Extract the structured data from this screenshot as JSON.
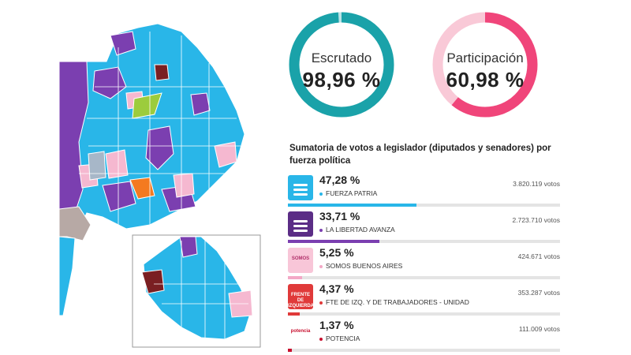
{
  "gauges": {
    "escrutado": {
      "label": "Escrutado",
      "value": "98,96 %",
      "fraction": 0.9896,
      "color": "#1aa2a9",
      "track": "#b9e3e6"
    },
    "participacion": {
      "label": "Participación",
      "value": "60,98 %",
      "fraction": 0.6098,
      "color": "#f0457a",
      "track": "#f9c9d7"
    }
  },
  "results": {
    "title": "Sumatoria de votos a legislador (diputados y senadores) por fuerza política",
    "parties": [
      {
        "percent": "47,28 %",
        "share": 0.4728,
        "name": "FUERZA PATRIA",
        "votes": "3.820.119 votos",
        "color": "#29b6e8",
        "logo_bg": "#29b6e8",
        "logo_text": "",
        "icon": "fuerza-patria-logo"
      },
      {
        "percent": "33,71 %",
        "share": 0.3371,
        "name": "LA LIBERTAD AVANZA",
        "votes": "2.723.710 votos",
        "color": "#7b3fb0",
        "logo_bg": "#5b2d86",
        "logo_text": "",
        "icon": "lla-lion-logo"
      },
      {
        "percent": "5,25 %",
        "share": 0.0525,
        "name": "SOMOS BUENOS AIRES",
        "votes": "424.671 votos",
        "color": "#f3a8c6",
        "logo_bg": "#f8c6d8",
        "logo_text": "SOMOS",
        "icon": "somos-logo"
      },
      {
        "percent": "4,37 %",
        "share": 0.0437,
        "name": "FTE DE IZQ. Y DE TRABAJADORES - UNIDAD",
        "votes": "353.287 votos",
        "color": "#e03a3a",
        "logo_bg": "#e03a3a",
        "logo_text": "FRENTE DE IZQUIERDA",
        "icon": "fit-logo"
      },
      {
        "percent": "1,37 %",
        "share": 0.0137,
        "name": "POTENCIA",
        "votes": "111.009 votos",
        "color": "#c8102e",
        "logo_bg": "#ffffff",
        "logo_text": "potencia",
        "icon": "potencia-logo"
      }
    ]
  },
  "map": {
    "colors": {
      "cyan": "#29b6e8",
      "purple": "#7b3fb0",
      "pink": "#f5b8d0",
      "green": "#9ccc3d",
      "orange": "#f47a20",
      "gray": "#a7b7c8",
      "taupe": "#b7a9a5",
      "maroon": "#7a1f22"
    }
  }
}
